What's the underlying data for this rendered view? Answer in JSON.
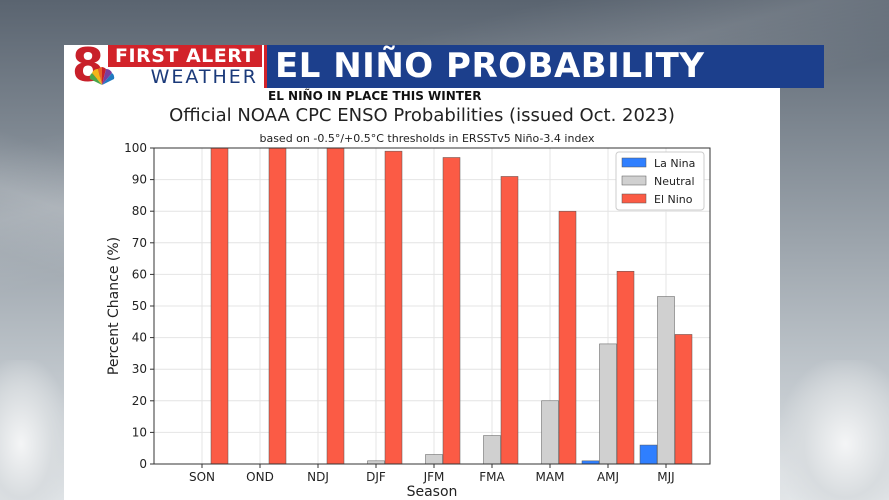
{
  "branding": {
    "station_number": "8",
    "first_alert": "FIRST ALERT",
    "weather": "WEATHER"
  },
  "banner": {
    "title": "EL NIÑO PROBABILITY",
    "subhead": "EL NIÑO IN PLACE THIS WINTER"
  },
  "colors": {
    "la_nina": "#2f7fff",
    "neutral": "#d0d0d0",
    "el_nino": "#fb5b45",
    "banner_blue": "#1c3f8c",
    "alert_red": "#d2232a"
  },
  "chart_data": {
    "type": "bar",
    "title": "Official NOAA CPC ENSO Probabilities (issued Oct. 2023)",
    "subtitle": "based on -0.5°/+0.5°C thresholds in ERSSTv5 Niño-3.4 index",
    "xlabel": "Season",
    "ylabel": "Percent Chance (%)",
    "ylim": [
      0,
      100
    ],
    "yticks": [
      0,
      10,
      20,
      30,
      40,
      50,
      60,
      70,
      80,
      90,
      100
    ],
    "grid": true,
    "legend_position": "top-right",
    "categories": [
      "SON",
      "OND",
      "NDJ",
      "DJF",
      "JFM",
      "FMA",
      "MAM",
      "AMJ",
      "MJJ"
    ],
    "series": [
      {
        "name": "La Nina",
        "color": "#2f7fff",
        "values": [
          0,
          0,
          0,
          0,
          0,
          0,
          0,
          1,
          6
        ]
      },
      {
        "name": "Neutral",
        "color": "#d0d0d0",
        "values": [
          0,
          0,
          0,
          1,
          3,
          9,
          20,
          38,
          53
        ]
      },
      {
        "name": "El Nino",
        "color": "#fb5b45",
        "values": [
          100,
          100,
          100,
          99,
          97,
          91,
          80,
          61,
          41
        ]
      }
    ]
  }
}
